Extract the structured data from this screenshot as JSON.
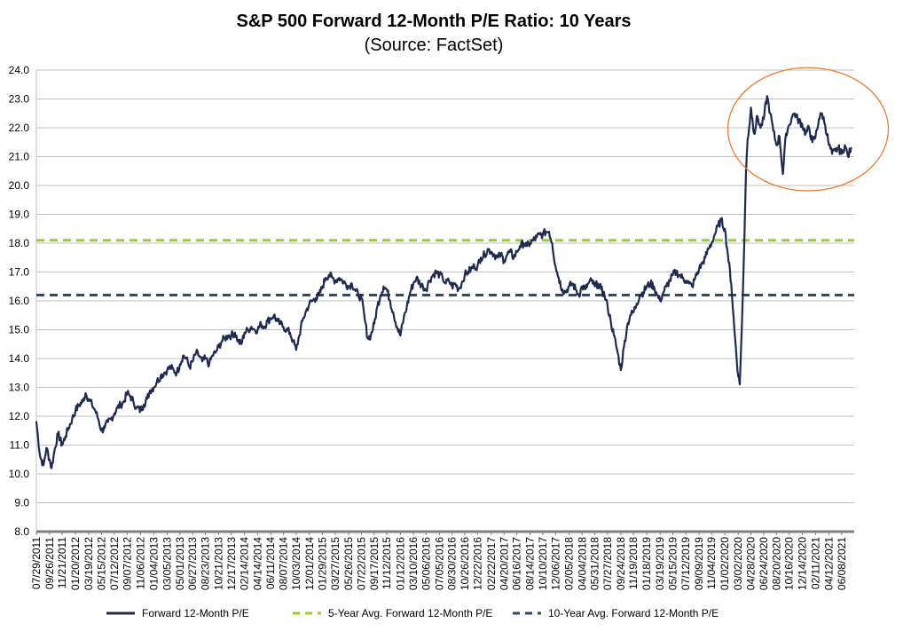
{
  "chart_data": {
    "type": "line",
    "title": "S&P 500 Forward 12-Month P/E Ratio: 10 Years",
    "subtitle": "(Source: FactSet)",
    "xlabel": "",
    "ylabel": "",
    "ylim": [
      8.0,
      24.0
    ],
    "y_ticks": [
      "8.0",
      "9.0",
      "10.0",
      "11.0",
      "12.0",
      "13.0",
      "14.0",
      "15.0",
      "16.0",
      "17.0",
      "18.0",
      "19.0",
      "20.0",
      "21.0",
      "22.0",
      "23.0",
      "24.0"
    ],
    "x_tick_labels": [
      "07/29/2011",
      "09/26/2011",
      "11/21/2011",
      "01/20/2012",
      "03/19/2012",
      "05/15/2012",
      "07/12/2012",
      "09/07/2012",
      "11/06/2012",
      "01/04/2013",
      "03/05/2013",
      "05/01/2013",
      "06/27/2013",
      "08/23/2013",
      "10/21/2013",
      "12/17/2013",
      "02/14/2014",
      "04/14/2014",
      "06/11/2014",
      "08/07/2014",
      "10/03/2014",
      "12/01/2014",
      "01/29/2015",
      "03/27/2015",
      "05/26/2015",
      "07/22/2015",
      "09/17/2015",
      "11/12/2015",
      "01/12/2016",
      "03/10/2016",
      "05/06/2016",
      "07/05/2016",
      "08/30/2016",
      "10/26/2016",
      "12/22/2016",
      "02/22/2017",
      "04/20/2017",
      "06/16/2017",
      "08/14/2017",
      "10/10/2017",
      "12/06/2017",
      "02/05/2018",
      "04/04/2018",
      "05/31/2018",
      "07/27/2018",
      "09/24/2018",
      "11/19/2018",
      "01/18/2019",
      "03/19/2019",
      "05/15/2019",
      "07/12/2019",
      "09/09/2019",
      "11/04/2019",
      "01/02/2020",
      "03/02/2020",
      "04/28/2020",
      "06/24/2020",
      "08/20/2020",
      "10/16/2020",
      "12/14/2020",
      "02/11/2021",
      "04/12/2021",
      "06/08/2021"
    ],
    "grid": true,
    "legend_position": "bottom",
    "reference_lines": [
      {
        "name": "5-Year Avg. Forward 12-Month P/E",
        "value": 18.1,
        "color": "#9ACD32",
        "style": "dashed"
      },
      {
        "name": "10-Year Avg. Forward 12-Month P/E",
        "value": 16.2,
        "color": "#2E4A6B",
        "style": "dashed"
      }
    ],
    "series": [
      {
        "name": "Forward 12-Month P/E",
        "color": "#1F2A4E",
        "x": [
          "07/29/2011",
          "08/15/2011",
          "08/30/2011",
          "09/12/2011",
          "09/26/2011",
          "10/05/2011",
          "10/20/2011",
          "11/03/2011",
          "11/21/2011",
          "12/06/2011",
          "12/20/2011",
          "01/05/2012",
          "01/20/2012",
          "02/06/2012",
          "02/21/2012",
          "03/05/2012",
          "03/19/2012",
          "04/03/2012",
          "04/17/2012",
          "05/01/2012",
          "05/15/2012",
          "05/30/2012",
          "06/13/2012",
          "06/27/2012",
          "07/12/2012",
          "07/26/2012",
          "08/09/2012",
          "08/23/2012",
          "09/07/2012",
          "09/21/2012",
          "10/05/2012",
          "10/19/2012",
          "11/06/2012",
          "11/20/2012",
          "12/05/2012",
          "12/19/2012",
          "01/04/2013",
          "01/18/2013",
          "02/04/2013",
          "02/19/2013",
          "03/05/2013",
          "03/19/2013",
          "04/03/2013",
          "04/17/2013",
          "05/01/2013",
          "05/15/2013",
          "05/30/2013",
          "06/13/2013",
          "06/27/2013",
          "07/12/2013",
          "07/26/2013",
          "08/09/2013",
          "08/23/2013",
          "09/09/2013",
          "09/23/2013",
          "10/07/2013",
          "10/21/2013",
          "11/04/2013",
          "11/18/2013",
          "12/03/2013",
          "12/17/2013",
          "01/02/2014",
          "01/16/2014",
          "01/31/2014",
          "02/14/2014",
          "03/03/2014",
          "03/17/2014",
          "03/31/2014",
          "04/14/2014",
          "04/29/2014",
          "05/13/2014",
          "05/28/2014",
          "06/11/2014",
          "06/25/2014",
          "07/10/2014",
          "07/24/2014",
          "08/07/2014",
          "08/21/2014",
          "09/05/2014",
          "09/19/2014",
          "10/03/2014",
          "10/17/2014",
          "10/31/2014",
          "11/14/2014",
          "12/01/2014",
          "12/15/2014",
          "12/30/2014",
          "01/14/2015",
          "01/29/2015",
          "02/12/2015",
          "02/27/2015",
          "03/13/2015",
          "03/27/2015",
          "04/13/2015",
          "04/27/2015",
          "05/11/2015",
          "05/26/2015",
          "06/09/2015",
          "06/23/2015",
          "07/08/2015",
          "07/22/2015",
          "08/05/2015",
          "08/19/2015",
          "09/02/2015",
          "09/17/2015",
          "10/01/2015",
          "10/15/2015",
          "10/29/2015",
          "11/12/2015",
          "11/27/2015",
          "12/11/2015",
          "12/28/2015",
          "01/12/2016",
          "01/27/2016",
          "02/10/2016",
          "02/25/2016",
          "03/10/2016",
          "03/24/2016",
          "04/08/2016",
          "04/22/2016",
          "05/06/2016",
          "05/20/2016",
          "06/06/2016",
          "06/20/2016",
          "07/05/2016",
          "07/19/2016",
          "08/02/2016",
          "08/16/2016",
          "08/30/2016",
          "09/14/2016",
          "09/28/2016",
          "10/12/2016",
          "10/26/2016",
          "11/09/2016",
          "11/23/2016",
          "12/08/2016",
          "12/22/2016",
          "01/06/2017",
          "01/23/2017",
          "02/06/2017",
          "02/22/2017",
          "03/08/2017",
          "03/22/2017",
          "04/05/2017",
          "04/20/2017",
          "05/04/2017",
          "05/18/2017",
          "06/02/2017",
          "06/16/2017",
          "06/30/2017",
          "07/17/2017",
          "07/31/2017",
          "08/14/2017",
          "08/28/2017",
          "09/12/2017",
          "09/26/2017",
          "10/10/2017",
          "10/24/2017",
          "11/07/2017",
          "11/21/2017",
          "12/06/2017",
          "12/20/2017",
          "01/05/2018",
          "01/19/2018",
          "02/05/2018",
          "02/20/2018",
          "03/06/2018",
          "03/20/2018",
          "04/04/2018",
          "04/18/2018",
          "05/02/2018",
          "05/16/2018",
          "05/31/2018",
          "06/14/2018",
          "06/28/2018",
          "07/13/2018",
          "07/27/2018",
          "08/10/2018",
          "08/24/2018",
          "09/10/2018",
          "09/24/2018",
          "10/08/2018",
          "10/22/2018",
          "11/05/2018",
          "11/19/2018",
          "12/04/2018",
          "12/18/2018",
          "01/03/2019",
          "01/18/2019",
          "02/04/2019",
          "02/19/2019",
          "03/05/2019",
          "03/19/2019",
          "04/02/2019",
          "04/16/2019",
          "05/01/2019",
          "05/15/2019",
          "05/30/2019",
          "06/13/2019",
          "06/27/2019",
          "07/12/2019",
          "07/26/2019",
          "08/09/2019",
          "08/23/2019",
          "09/09/2019",
          "09/23/2019",
          "10/07/2019",
          "10/21/2019",
          "11/04/2019",
          "11/18/2019",
          "12/03/2019",
          "12/17/2019",
          "01/02/2020",
          "01/16/2020",
          "01/31/2020",
          "02/14/2020",
          "03/02/2020",
          "03/09/2020",
          "03/16/2020",
          "03/23/2020",
          "03/30/2020",
          "04/06/2020",
          "04/13/2020",
          "04/20/2020",
          "04/28/2020",
          "05/12/2020",
          "05/27/2020",
          "06/10/2020",
          "06/24/2020",
          "07/09/2020",
          "07/23/2020",
          "08/06/2020",
          "08/20/2020",
          "09/03/2020",
          "09/18/2020",
          "10/02/2020",
          "10/16/2020",
          "10/30/2020",
          "11/09/2020",
          "11/23/2020",
          "12/14/2020",
          "12/29/2020",
          "01/13/2021",
          "01/28/2021",
          "02/11/2021",
          "02/26/2021",
          "03/12/2021",
          "03/26/2021",
          "04/12/2021",
          "04/26/2021",
          "05/10/2021",
          "05/24/2021",
          "06/08/2021",
          "06/22/2021",
          "07/06/2021",
          "07/20/2021"
        ],
        "values": [
          11.8,
          10.6,
          10.3,
          10.9,
          10.5,
          10.2,
          10.9,
          11.4,
          11.0,
          11.3,
          11.6,
          11.9,
          12.2,
          12.4,
          12.5,
          12.8,
          12.6,
          12.4,
          12.2,
          11.9,
          11.5,
          11.6,
          11.8,
          11.9,
          12.1,
          12.3,
          12.4,
          12.5,
          12.8,
          12.7,
          12.5,
          12.3,
          12.2,
          12.4,
          12.6,
          12.9,
          13.0,
          13.2,
          13.4,
          13.5,
          13.6,
          13.7,
          13.6,
          13.5,
          13.8,
          14.1,
          14.0,
          13.7,
          13.9,
          14.2,
          14.1,
          13.9,
          14.0,
          13.8,
          14.1,
          14.2,
          14.4,
          14.6,
          14.7,
          14.8,
          14.8,
          14.9,
          14.6,
          14.5,
          14.9,
          15.0,
          15.1,
          15.0,
          15.0,
          15.2,
          15.1,
          15.3,
          15.4,
          15.5,
          15.3,
          15.2,
          15.1,
          15.0,
          14.9,
          14.6,
          14.3,
          14.8,
          15.3,
          15.6,
          15.9,
          16.0,
          16.1,
          16.2,
          16.5,
          16.8,
          16.9,
          16.8,
          16.7,
          16.8,
          16.7,
          16.6,
          16.5,
          16.6,
          16.4,
          16.2,
          16.1,
          15.4,
          14.7,
          14.8,
          15.2,
          15.8,
          16.2,
          16.5,
          16.4,
          16.0,
          15.6,
          15.1,
          14.8,
          15.4,
          15.8,
          16.3,
          16.6,
          16.8,
          16.6,
          16.5,
          16.4,
          16.7,
          16.9,
          17.0,
          16.9,
          16.8,
          16.6,
          16.7,
          16.5,
          16.6,
          16.4,
          16.6,
          16.9,
          17.0,
          17.1,
          17.2,
          17.2,
          17.5,
          17.6,
          17.8,
          17.7,
          17.6,
          17.5,
          17.6,
          17.4,
          17.6,
          17.7,
          17.5,
          17.7,
          17.9,
          18.0,
          17.9,
          18.0,
          18.1,
          18.2,
          18.3,
          18.3,
          18.4,
          18.4,
          18.0,
          17.2,
          16.8,
          16.4,
          16.3,
          16.5,
          16.6,
          16.4,
          16.2,
          16.5,
          16.4,
          16.6,
          16.7,
          16.5,
          16.6,
          16.4,
          16.2,
          15.8,
          15.3,
          14.8,
          14.2,
          13.6,
          14.4,
          15.1,
          15.5,
          15.6,
          15.9,
          16.2,
          16.3,
          16.5,
          16.6,
          16.5,
          16.2,
          16.0,
          16.3,
          16.5,
          16.7,
          16.9,
          17.0,
          16.9,
          16.8,
          16.7,
          16.6,
          16.5,
          16.8,
          17.1,
          17.3,
          17.5,
          17.8,
          18.0,
          18.3,
          18.6,
          18.8,
          18.5,
          17.6,
          16.6,
          15.0,
          13.4,
          13.1,
          14.6,
          16.3,
          18.2,
          20.5,
          21.6,
          22.0,
          22.7,
          21.8,
          22.4,
          22.0,
          22.3,
          23.1,
          22.5,
          21.9,
          21.4,
          21.7,
          20.4,
          21.8,
          22.1,
          22.4,
          22.5,
          22.3,
          22.1,
          21.8,
          22.0,
          21.5,
          21.7,
          22.3,
          22.5,
          22.1,
          21.4,
          21.1,
          21.2,
          21.3,
          21.1,
          21.4,
          21.0,
          21.3
        ]
      }
    ],
    "annotations": [
      {
        "type": "ellipse",
        "color": "#ED7D31",
        "description": "highlight",
        "x_range": [
          "04/28/2020",
          "07/20/2021"
        ],
        "y_range": [
          20.0,
          23.9
        ]
      }
    ]
  },
  "legend": {
    "items": [
      {
        "label": "Forward 12-Month P/E",
        "color": "#1F2A4E",
        "style": "solid"
      },
      {
        "label": "5-Year Avg. Forward 12-Month P/E",
        "color": "#9ACD32",
        "style": "dashed"
      },
      {
        "label": "10-Year Avg. Forward 12-Month P/E",
        "color": "#2E4A6B",
        "style": "dashed"
      }
    ]
  }
}
